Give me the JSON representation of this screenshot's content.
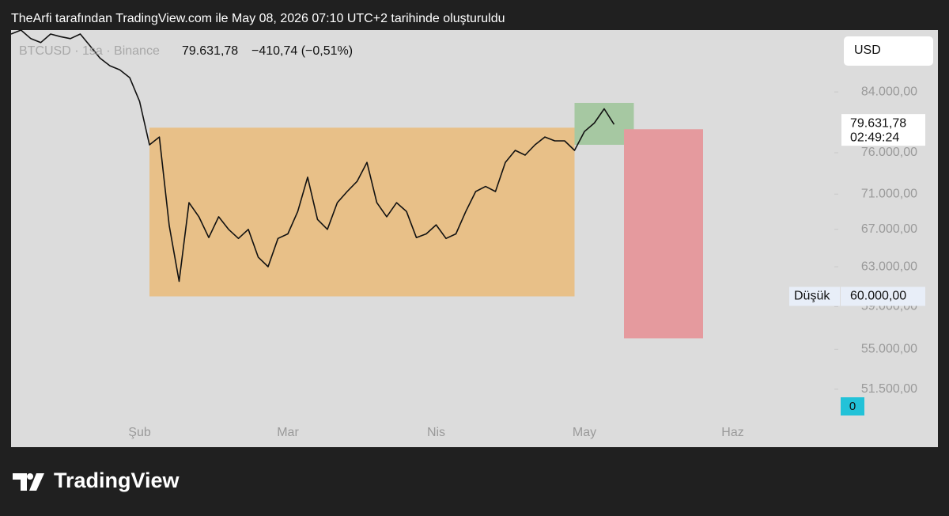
{
  "header": {
    "caption": "TheArfi tarafından TradingView.com ile May 08, 2026 07:10 UTC+2 tarihinde oluşturuldu"
  },
  "footer": {
    "brand": "TradingView"
  },
  "chart_data": {
    "type": "line",
    "symbol": "BTCUSD · 1sa · Binance",
    "price": "79.631,78",
    "change": "−410,74 (−0,51%)",
    "currency": "USD",
    "countdown": "02:49:24",
    "last_price": {
      "value": 79631.78,
      "label": "79.631,78"
    },
    "low": {
      "name": "Düşük",
      "value": 60000,
      "label": "60.000,00"
    },
    "volume_label": "0",
    "log": true,
    "color": "#111111",
    "categories": [
      null,
      null,
      null,
      null,
      null,
      null,
      null,
      null,
      null,
      null,
      null,
      null,
      null,
      "Şub",
      null,
      null,
      null,
      null,
      null,
      null,
      null,
      null,
      null,
      null,
      null,
      null,
      null,
      null,
      "Mar",
      null,
      null,
      null,
      null,
      null,
      null,
      null,
      null,
      null,
      null,
      null,
      null,
      null,
      null,
      "Nis",
      null,
      null,
      null,
      null,
      null,
      null,
      null,
      null,
      null,
      null,
      null,
      null,
      null,
      null,
      "May",
      null,
      null,
      null,
      null,
      null,
      null,
      null,
      null,
      null,
      null,
      null,
      null,
      null,
      null,
      "Haz",
      null,
      null,
      null,
      null,
      null,
      null,
      null,
      null,
      null,
      null
    ],
    "values": [
      92400,
      93000,
      91700,
      91100,
      92400,
      92000,
      91700,
      92400,
      90600,
      88800,
      87700,
      87100,
      86000,
      82700,
      77000,
      78000,
      67400,
      61500,
      70000,
      68400,
      66100,
      68400,
      67000,
      66000,
      67000,
      64000,
      63000,
      66000,
      66500,
      69000,
      73000,
      68100,
      67000,
      70000,
      71300,
      72500,
      74800,
      70000,
      68400,
      70000,
      69000,
      66100,
      66500,
      67500,
      66000,
      66500,
      69000,
      71300,
      71900,
      71300,
      74800,
      76300,
      75700,
      77000,
      78000,
      77500,
      77500,
      76300,
      78700,
      79800,
      81700,
      79631.78,
      null,
      null,
      null,
      null,
      null,
      null,
      null,
      null,
      null,
      null,
      null,
      null,
      null,
      null,
      null,
      null,
      null,
      null,
      null,
      null,
      null,
      null
    ],
    "zones": [
      {
        "start": 14,
        "end": 57,
        "low": 60000,
        "high": 79200,
        "color": "#e8c088"
      },
      {
        "start": 57,
        "end": 63,
        "low": 77000,
        "high": 82500,
        "color": "#a6c8a2"
      },
      {
        "start": 62,
        "end": 70,
        "low": 56000,
        "high": 79000,
        "color": "#e59a9e"
      }
    ],
    "ylim": [
      49000,
      93000
    ],
    "yticks": [
      {
        "value": 84000,
        "label": "84.000,00"
      },
      {
        "value": 76000,
        "label": "76.000,00"
      },
      {
        "value": 71000,
        "label": "71.000,00"
      },
      {
        "value": 67000,
        "label": "67.000,00"
      },
      {
        "value": 63000,
        "label": "63.000,00"
      },
      {
        "value": 59000,
        "label": "59.000,00"
      },
      {
        "value": 55000,
        "label": "55.000,00"
      },
      {
        "value": 51500,
        "label": "51.500,00"
      }
    ]
  }
}
